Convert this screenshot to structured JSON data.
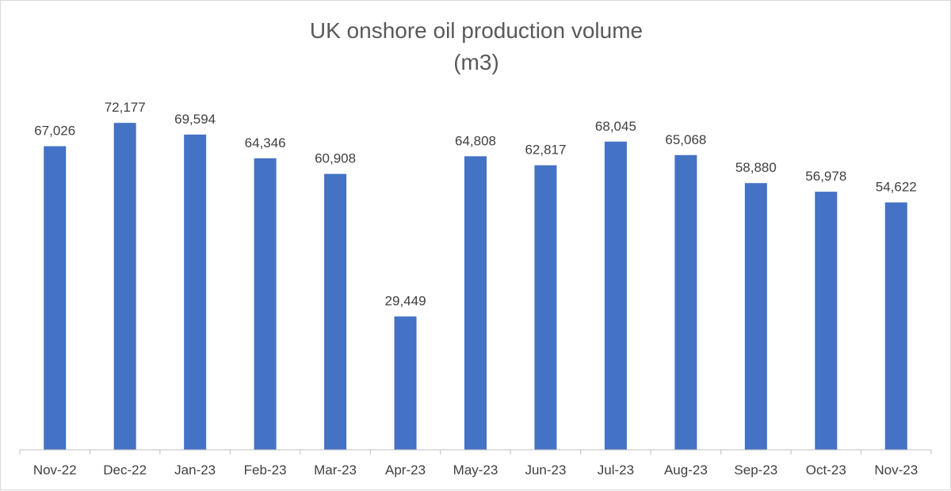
{
  "chart_data": {
    "type": "bar",
    "title": "UK onshore oil production volume",
    "subtitle": "(m3)",
    "categories": [
      "Nov-22",
      "Dec-22",
      "Jan-23",
      "Feb-23",
      "Mar-23",
      "Apr-23",
      "May-23",
      "Jun-23",
      "Jul-23",
      "Aug-23",
      "Sep-23",
      "Oct-23",
      "Nov-23"
    ],
    "values": [
      67026,
      72177,
      69594,
      64346,
      60908,
      29449,
      64808,
      62817,
      68045,
      65068,
      58880,
      56978,
      54622
    ],
    "data_labels": [
      "67,026",
      "72,177",
      "69,594",
      "64,346",
      "60,908",
      "29,449",
      "64,808",
      "62,817",
      "68,045",
      "65,068",
      "58,880",
      "56,978",
      "54,622"
    ],
    "xlabel": "",
    "ylabel": "",
    "ylim": [
      0,
      80000
    ],
    "grid": false,
    "legend": "none",
    "bar_color": "#4472c4"
  }
}
